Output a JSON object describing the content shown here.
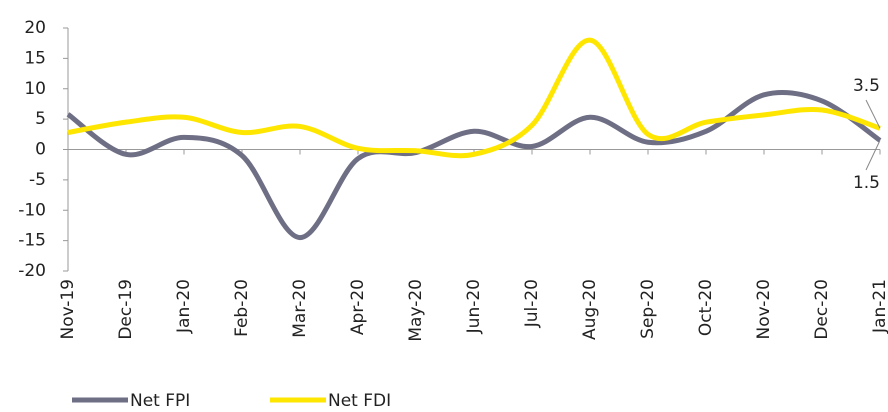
{
  "chart_data": {
    "type": "line",
    "categories": [
      "Nov-19",
      "Dec-19",
      "Jan-20",
      "Feb-20",
      "Mar-20",
      "Apr-20",
      "May-20",
      "Jun-20",
      "Jul-20",
      "Aug-20",
      "Sep-20",
      "Oct-20",
      "Nov-20",
      "Dec-20",
      "Jan-21"
    ],
    "series": [
      {
        "name": "Net FPI",
        "color": "#6e6e85",
        "values": [
          5.8,
          -0.8,
          2,
          -1,
          -14.5,
          -1.5,
          -0.5,
          3,
          0.5,
          5.3,
          1.2,
          3,
          9,
          8,
          1.5
        ]
      },
      {
        "name": "Net FDI",
        "color": "#ffe600",
        "values": [
          2.8,
          4.5,
          5.3,
          2.8,
          3.8,
          0.2,
          -0.2,
          -0.8,
          4,
          18,
          2.5,
          4.5,
          5.7,
          6.5,
          3.5
        ]
      }
    ],
    "ylim": [
      -20,
      20
    ],
    "yticks": [
      -20,
      -15,
      -10,
      -5,
      0,
      5,
      10,
      15,
      20
    ],
    "grid": false,
    "legend": "bottom"
  }
}
